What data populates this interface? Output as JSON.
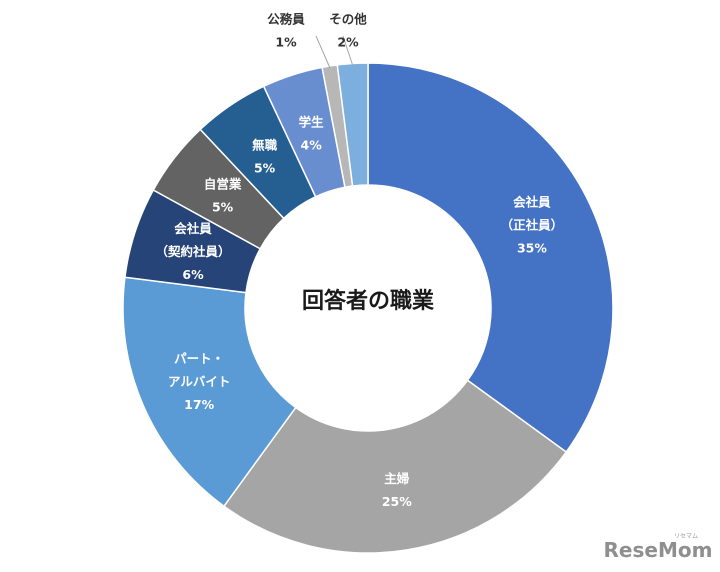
{
  "chart_data": {
    "type": "pie",
    "donut": true,
    "title": "回答者の職業",
    "start_at": "12 o'clock, clockwise",
    "slices": [
      {
        "lines": [
          "会社員",
          "（正社員）",
          "35%"
        ],
        "value": 35,
        "color": "#4472c4",
        "text_color": "#ffffff",
        "label_pos": "inside"
      },
      {
        "lines": [
          "主婦",
          "25%"
        ],
        "value": 25,
        "color": "#a5a5a5",
        "text_color": "#ffffff",
        "label_pos": "inside"
      },
      {
        "lines": [
          "パート・",
          "アルバイト",
          "17%"
        ],
        "value": 17,
        "color": "#5b9bd5",
        "text_color": "#ffffff",
        "label_pos": "inside"
      },
      {
        "lines": [
          "会社員",
          "（契約社員）",
          "6%"
        ],
        "value": 6,
        "color": "#264478",
        "text_color": "#ffffff",
        "label_pos": "inside"
      },
      {
        "lines": [
          "自営業",
          "5%"
        ],
        "value": 5,
        "color": "#636363",
        "text_color": "#ffffff",
        "label_pos": "inside"
      },
      {
        "lines": [
          "無職",
          "5%"
        ],
        "value": 5,
        "color": "#255e91",
        "text_color": "#ffffff",
        "label_pos": "inside"
      },
      {
        "lines": [
          "学生",
          "4%"
        ],
        "value": 4,
        "color": "#698ed0",
        "text_color": "#ffffff",
        "label_pos": "inside"
      },
      {
        "lines": [
          "公務員",
          "1%"
        ],
        "value": 1,
        "color": "#b7b7b7",
        "text_color": "#333333",
        "label_pos": "outside-left"
      },
      {
        "lines": [
          "その他",
          "2%"
        ],
        "value": 2,
        "color": "#7cafdd",
        "text_color": "#333333",
        "label_pos": "outside-right"
      }
    ]
  },
  "watermark": {
    "text": "ReseMom",
    "kana": "リセマム"
  }
}
